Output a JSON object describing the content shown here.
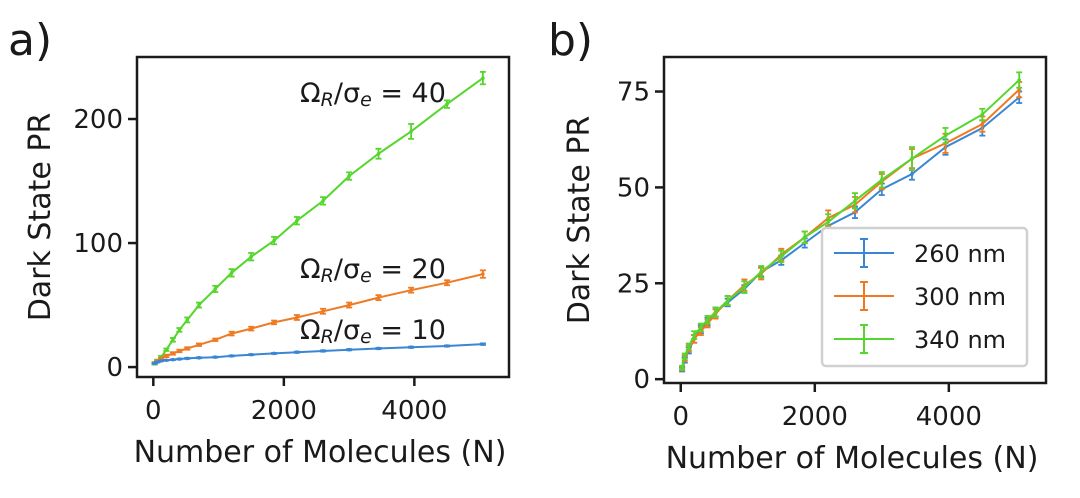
{
  "figure": {
    "panels": [
      {
        "label": "a)",
        "xlabel": "Number of Molecules (N)",
        "ylabel": "Dark State PR",
        "xticks": [
          "0",
          "2000",
          "4000"
        ],
        "yticks": [
          "0",
          "100",
          "200"
        ]
      },
      {
        "label": "b)",
        "xlabel": "Number of Molecules (N)",
        "ylabel": "Dark State PR",
        "xticks": [
          "0",
          "2000",
          "4000"
        ],
        "yticks": [
          "0",
          "25",
          "50",
          "75"
        ]
      }
    ]
  },
  "chart_data": [
    {
      "type": "line",
      "panel": "a)",
      "xlabel": "Number of Molecules (N)",
      "ylabel": "Dark State PR",
      "xlim": [
        -250,
        5450
      ],
      "ylim": [
        -8,
        250
      ],
      "xticks": [
        0,
        2000,
        4000
      ],
      "yticks": [
        0,
        100,
        200
      ],
      "grid": false,
      "x": [
        20,
        60,
        120,
        200,
        300,
        400,
        520,
        700,
        950,
        1200,
        1500,
        1850,
        2200,
        2600,
        3000,
        3450,
        3950,
        4500,
        5050
      ],
      "series": [
        {
          "annotation": {
            "prefix": "Ω",
            "sub1": "R",
            "mid": "/σ",
            "sub2": "e",
            "suffix": " = 40"
          },
          "color": "#55d62d",
          "values": [
            3,
            5,
            8,
            14,
            22,
            30,
            38,
            50,
            63,
            76,
            89,
            102,
            118,
            134,
            154,
            172,
            190,
            212,
            233
          ],
          "errors": [
            1,
            1,
            1,
            1,
            1.5,
            1.5,
            2,
            2,
            2.5,
            3,
            3,
            3,
            3,
            3,
            3,
            4,
            6,
            3,
            5
          ]
        },
        {
          "annotation": {
            "prefix": "Ω",
            "sub1": "R",
            "mid": "/σ",
            "sub2": "e",
            "suffix": " = 20"
          },
          "color": "#f07a22",
          "values": [
            3,
            5,
            7,
            9,
            11,
            13,
            15,
            18,
            22,
            27,
            31,
            36,
            40,
            45,
            50,
            56,
            62,
            68,
            75
          ],
          "errors": [
            0.5,
            0.5,
            0.5,
            1,
            1,
            1,
            1,
            1,
            1,
            1.5,
            1.5,
            1.5,
            2,
            2,
            2,
            2,
            2,
            2,
            3
          ]
        },
        {
          "annotation": {
            "prefix": "Ω",
            "sub1": "R",
            "mid": "/σ",
            "sub2": "e",
            "suffix": " = 10"
          },
          "color": "#3a86d4",
          "values": [
            3,
            4,
            5,
            5.5,
            6,
            6.5,
            7,
            7.5,
            8,
            9,
            10,
            11,
            12,
            13,
            14,
            15,
            16,
            17,
            18.5
          ],
          "errors": [
            0.3,
            0.3,
            0.3,
            0.3,
            0.3,
            0.3,
            0.4,
            0.4,
            0.4,
            0.4,
            0.4,
            0.4,
            0.5,
            0.5,
            0.5,
            0.5,
            0.5,
            0.5,
            0.6
          ]
        }
      ]
    },
    {
      "type": "line",
      "panel": "b)",
      "xlabel": "Number of Molecules (N)",
      "ylabel": "Dark State PR",
      "xlim": [
        -250,
        5450
      ],
      "ylim": [
        -1,
        84
      ],
      "xticks": [
        0,
        2000,
        4000
      ],
      "yticks": [
        0,
        25,
        50,
        75
      ],
      "grid": false,
      "legend": "lower-right",
      "x": [
        20,
        60,
        120,
        200,
        300,
        400,
        520,
        700,
        950,
        1200,
        1500,
        1850,
        2200,
        2600,
        3000,
        3450,
        3950,
        4500,
        5050
      ],
      "series": [
        {
          "name": "260 nm",
          "color": "#3a86d4",
          "values": [
            2.5,
            5,
            7.5,
            10.5,
            13,
            15,
            17.5,
            20,
            23.5,
            28,
            31,
            35.5,
            40,
            43.5,
            49.5,
            53.5,
            60.5,
            65.5,
            73.5
          ],
          "errors": [
            0.5,
            0.7,
            0.8,
            1,
            1,
            1,
            1.2,
            1,
            1,
            1.2,
            1.2,
            1.2,
            1.5,
            1.5,
            1.5,
            1.5,
            2,
            2,
            1.5
          ]
        },
        {
          "name": "300 nm",
          "color": "#f07a22",
          "values": [
            2.8,
            5.5,
            8,
            10.5,
            12.5,
            14.5,
            17,
            20.5,
            24.5,
            27.5,
            32.5,
            37,
            42,
            45.5,
            51.5,
            57.5,
            61.5,
            66.5,
            75.5
          ],
          "errors": [
            0.5,
            0.7,
            0.8,
            1,
            1,
            1,
            1.2,
            1.2,
            1.5,
            1.5,
            1.5,
            1.5,
            2,
            2,
            2,
            2.5,
            2.5,
            2,
            2
          ]
        },
        {
          "name": "340 nm",
          "color": "#55d62d",
          "values": [
            3,
            6,
            8.5,
            11.5,
            13.5,
            15.5,
            17.5,
            20.5,
            24,
            28,
            32,
            37,
            41,
            46.5,
            52,
            57.5,
            63.5,
            69,
            78
          ],
          "errors": [
            0.5,
            0.7,
            0.8,
            1,
            1,
            1,
            1.2,
            1.2,
            1.5,
            1.5,
            1.5,
            1.5,
            2,
            2,
            2,
            3,
            2,
            1.5,
            2
          ]
        }
      ]
    }
  ]
}
